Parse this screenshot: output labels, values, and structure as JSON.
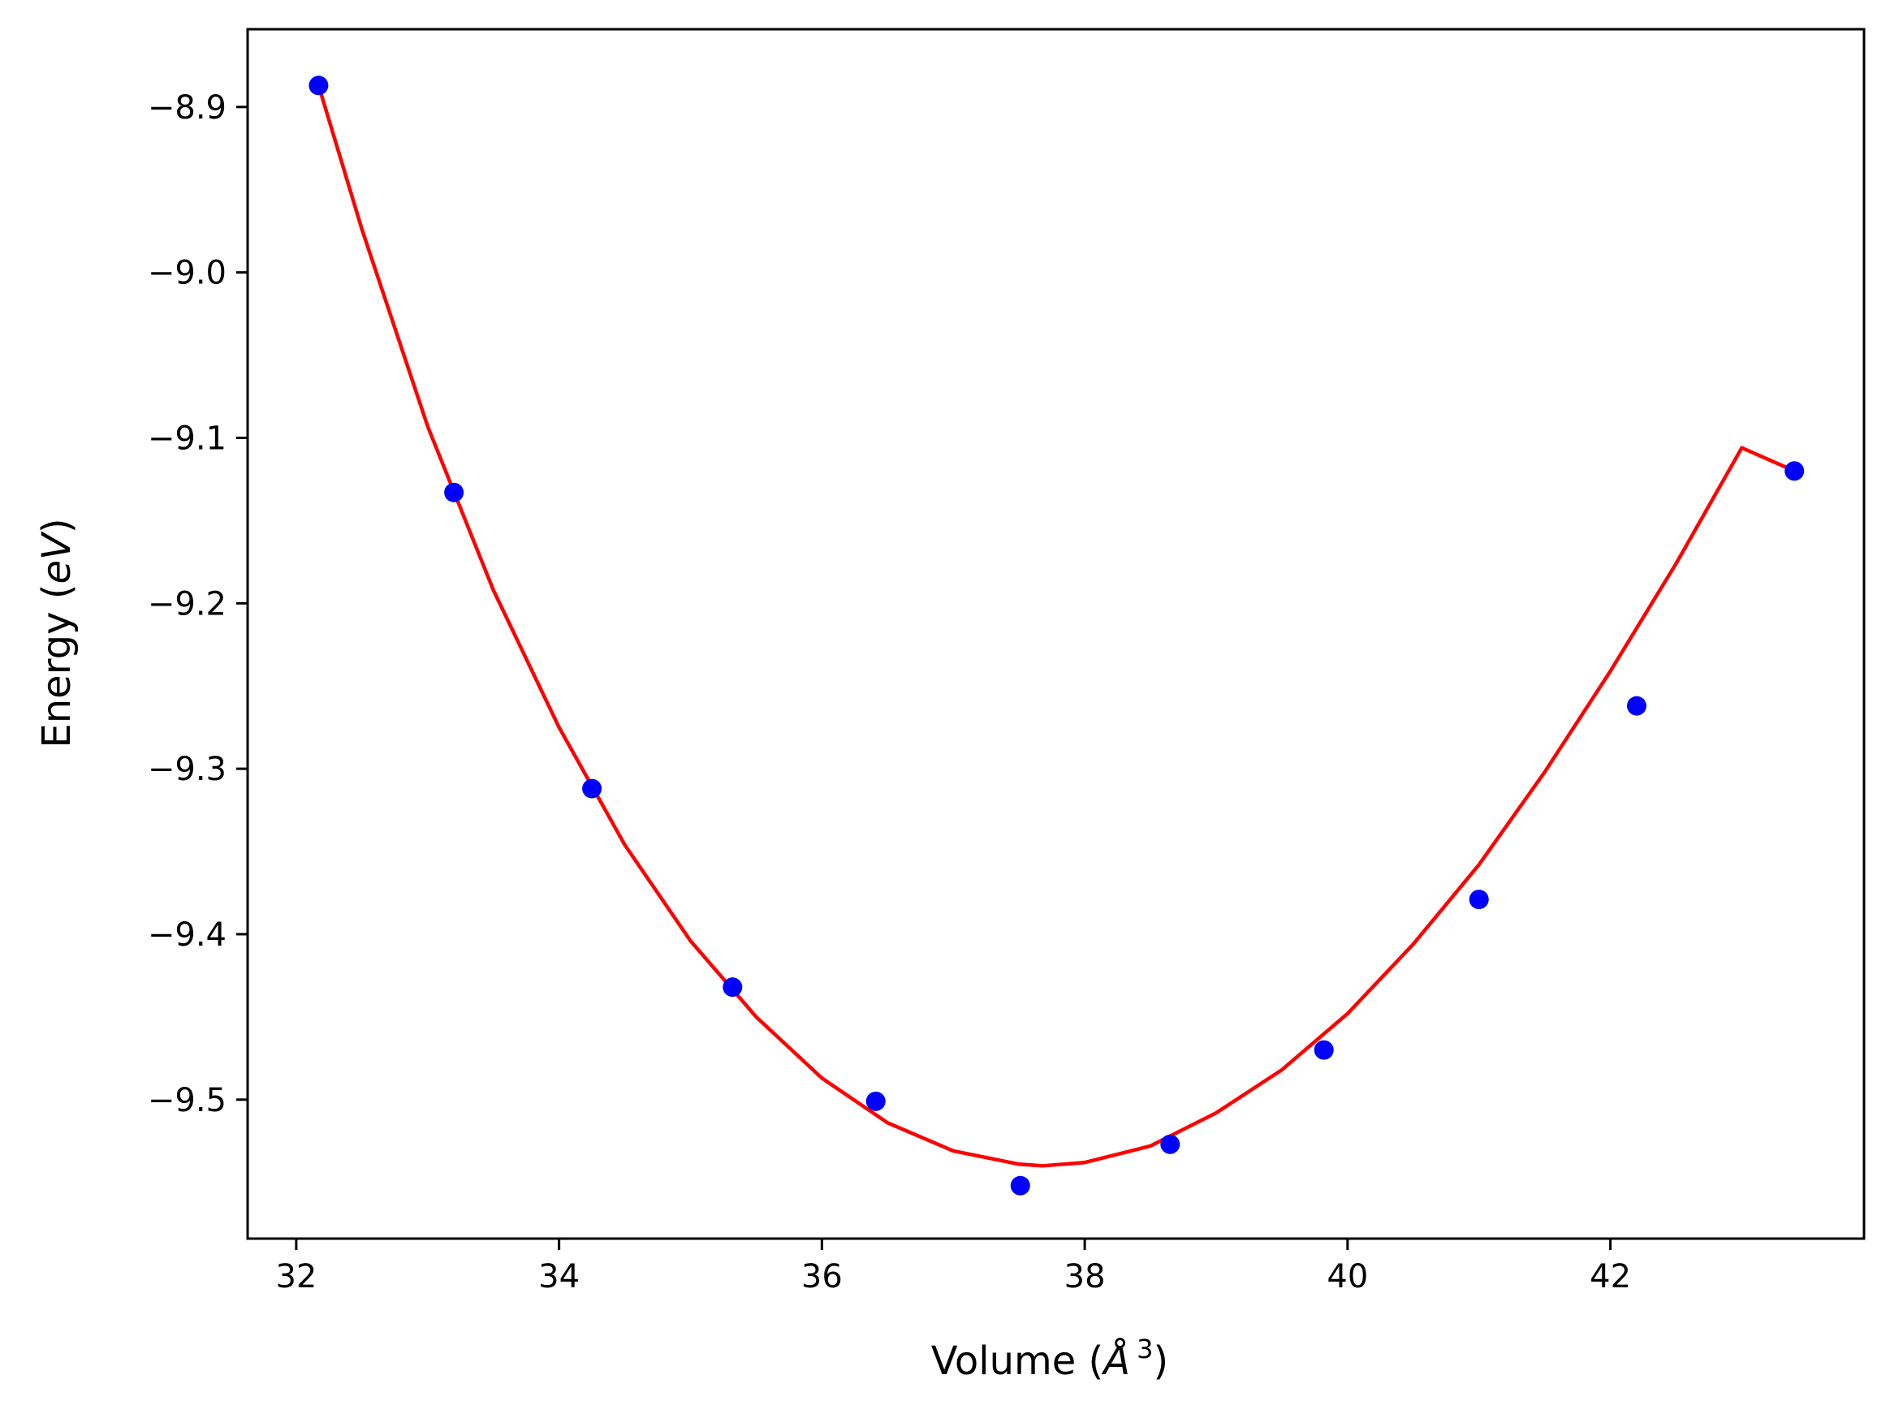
{
  "chart_data": {
    "type": "scatter",
    "title": "",
    "xlabel": {
      "prefix": "Volume (",
      "italic": "Å",
      "sup": "3",
      "suffix": ")"
    },
    "ylabel": {
      "prefix": "Energy (",
      "italic": "eV",
      "suffix": ")"
    },
    "xlim": [
      31.63,
      43.93
    ],
    "ylim": [
      -9.584,
      -8.853
    ],
    "xticks": [
      32,
      34,
      36,
      38,
      40,
      42
    ],
    "xtick_labels": [
      "32",
      "34",
      "36",
      "38",
      "40",
      "42"
    ],
    "yticks": [
      -8.9,
      -9.0,
      -9.1,
      -9.2,
      -9.3,
      -9.4,
      -9.5
    ],
    "ytick_labels": [
      "−8.9",
      "−9.0",
      "−9.1",
      "−9.2",
      "−9.3",
      "−9.4",
      "−9.5"
    ],
    "grid": false,
    "legend": "none",
    "colors": {
      "points": "#0000ff",
      "fit": "#ff0000",
      "axes": "#000000"
    },
    "series": [
      {
        "kind": "scatter",
        "x": [
          32.17,
          33.2,
          34.25,
          35.32,
          36.41,
          37.51,
          38.65,
          39.82,
          41.0,
          42.2,
          43.4
        ],
        "y": [
          -8.887,
          -9.133,
          -9.312,
          -9.432,
          -9.501,
          -9.552,
          -9.527,
          -9.47,
          -9.379,
          -9.262,
          -9.12
        ]
      },
      {
        "kind": "fit-line",
        "x": [
          32.17,
          32.5,
          33.0,
          33.5,
          34.0,
          34.5,
          35.0,
          35.5,
          36.0,
          36.5,
          37.0,
          37.5,
          37.68,
          38.0,
          38.5,
          39.0,
          39.5,
          40.0,
          40.5,
          41.0,
          41.5,
          42.0,
          42.5,
          43.0,
          43.4
        ],
        "y": [
          -8.887,
          -8.974,
          -9.093,
          -9.192,
          -9.275,
          -9.346,
          -9.404,
          -9.45,
          -9.487,
          -9.514,
          -9.531,
          -9.539,
          -9.54,
          -9.538,
          -9.528,
          -9.508,
          -9.482,
          -9.448,
          -9.406,
          -9.358,
          -9.302,
          -9.241,
          -9.176,
          -9.106,
          -9.12
        ]
      }
    ]
  }
}
